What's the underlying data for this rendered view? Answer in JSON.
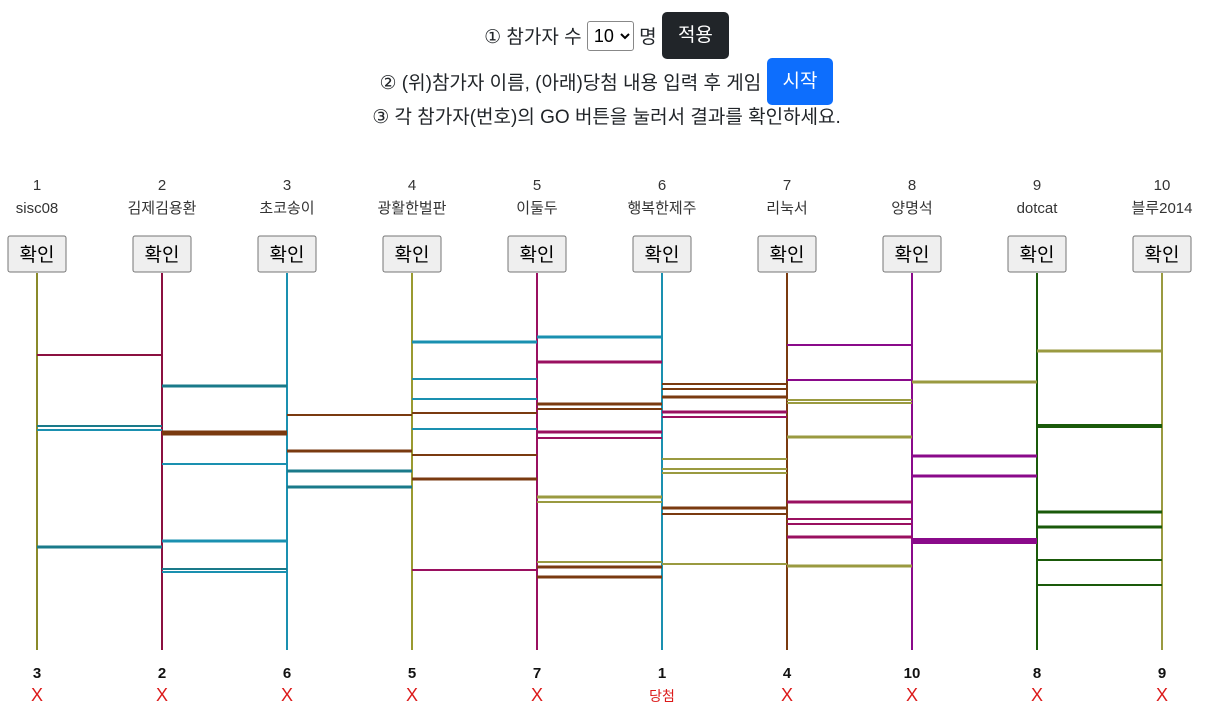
{
  "controls": {
    "line1_prefix": "① 참가자 수",
    "count_options": [
      "10"
    ],
    "count_selected": "10",
    "line1_suffix": "명",
    "apply_label": "적용",
    "line2_text": "② (위)참가자 이름, (아래)당첨 내용 입력 후 게임",
    "start_label": "시작",
    "line3_text": "③ 각 참가자(번호)의 GO 버튼을 눌러서 결과를 확인하세요."
  },
  "colors": {
    "lanes": [
      "#8a8a2a",
      "#8b1040",
      "#1a90b0",
      "#9a9a30",
      "#9a1060",
      "#1a90b0",
      "#7a3a10",
      "#8a0a8a",
      "#1a5a0a",
      "#9a9a40"
    ],
    "fail": "#dc1a1a",
    "win": "#dc1a1a",
    "button_bg": "#efefef"
  },
  "participants": [
    {
      "num": "1",
      "name": "sisc08",
      "button": "확인"
    },
    {
      "num": "2",
      "name": "김제김용환",
      "button": "확인"
    },
    {
      "num": "3",
      "name": "초코송이",
      "button": "확인"
    },
    {
      "num": "4",
      "name": "광활한벌판",
      "button": "확인"
    },
    {
      "num": "5",
      "name": "이둘두",
      "button": "확인"
    },
    {
      "num": "6",
      "name": "행복한제주",
      "button": "확인"
    },
    {
      "num": "7",
      "name": "리눅서",
      "button": "확인"
    },
    {
      "num": "8",
      "name": "양명석",
      "button": "확인"
    },
    {
      "num": "9",
      "name": "dotcat",
      "button": "확인"
    },
    {
      "num": "10",
      "name": "블루2014",
      "button": "확인"
    }
  ],
  "results": [
    {
      "num": "3",
      "text": "X"
    },
    {
      "num": "2",
      "text": "X"
    },
    {
      "num": "6",
      "text": "X"
    },
    {
      "num": "5",
      "text": "X"
    },
    {
      "num": "7",
      "text": "X"
    },
    {
      "num": "1",
      "text": "당첨"
    },
    {
      "num": "4",
      "text": "X"
    },
    {
      "num": "10",
      "text": "X"
    },
    {
      "num": "8",
      "text": "X"
    },
    {
      "num": "9",
      "text": "X"
    }
  ],
  "rungs": [
    {
      "gap": 0,
      "level": 355,
      "color": "#8b1040",
      "w": 2
    },
    {
      "gap": 0,
      "level": 426,
      "color": "#1a7a8a",
      "w": 2
    },
    {
      "gap": 0,
      "level": 430,
      "color": "#1a90b0",
      "w": 2
    },
    {
      "gap": 0,
      "level": 547,
      "color": "#1a7a8a",
      "w": 3
    },
    {
      "gap": 1,
      "level": 386,
      "color": "#1a7a8a",
      "w": 3
    },
    {
      "gap": 1,
      "level": 433,
      "color": "#7a3a10",
      "w": 5
    },
    {
      "gap": 1,
      "level": 464,
      "color": "#1a90b0",
      "w": 2
    },
    {
      "gap": 1,
      "level": 541,
      "color": "#1a90b0",
      "w": 3
    },
    {
      "gap": 1,
      "level": 569,
      "color": "#1a7a8a",
      "w": 2
    },
    {
      "gap": 1,
      "level": 572,
      "color": "#1a90b0",
      "w": 2
    },
    {
      "gap": 2,
      "level": 415,
      "color": "#7a3a10",
      "w": 2
    },
    {
      "gap": 2,
      "level": 451,
      "color": "#7a3a10",
      "w": 3
    },
    {
      "gap": 2,
      "level": 471,
      "color": "#1a7a8a",
      "w": 3
    },
    {
      "gap": 2,
      "level": 487,
      "color": "#1a7a8a",
      "w": 3
    },
    {
      "gap": 3,
      "level": 342,
      "color": "#1a90b0",
      "w": 3
    },
    {
      "gap": 3,
      "level": 379,
      "color": "#1a90b0",
      "w": 2
    },
    {
      "gap": 3,
      "level": 399,
      "color": "#1a90b0",
      "w": 2
    },
    {
      "gap": 3,
      "level": 413,
      "color": "#7a3a10",
      "w": 2
    },
    {
      "gap": 3,
      "level": 429,
      "color": "#1a90b0",
      "w": 2
    },
    {
      "gap": 3,
      "level": 455,
      "color": "#7a3a10",
      "w": 2
    },
    {
      "gap": 3,
      "level": 479,
      "color": "#7a3a10",
      "w": 3
    },
    {
      "gap": 3,
      "level": 570,
      "color": "#9a1060",
      "w": 2
    },
    {
      "gap": 4,
      "level": 337,
      "color": "#1a90b0",
      "w": 3
    },
    {
      "gap": 4,
      "level": 362,
      "color": "#9a1060",
      "w": 3
    },
    {
      "gap": 4,
      "level": 404,
      "color": "#7a3a10",
      "w": 3
    },
    {
      "gap": 4,
      "level": 409,
      "color": "#7a3a10",
      "w": 2
    },
    {
      "gap": 4,
      "level": 432,
      "color": "#9a1060",
      "w": 3
    },
    {
      "gap": 4,
      "level": 438,
      "color": "#9a1060",
      "w": 2
    },
    {
      "gap": 4,
      "level": 497,
      "color": "#9a9a40",
      "w": 3
    },
    {
      "gap": 4,
      "level": 502,
      "color": "#9a9a40",
      "w": 2
    },
    {
      "gap": 4,
      "level": 562,
      "color": "#9a9a40",
      "w": 2
    },
    {
      "gap": 4,
      "level": 567,
      "color": "#7a3a10",
      "w": 3
    },
    {
      "gap": 4,
      "level": 577,
      "color": "#7a3a10",
      "w": 3
    },
    {
      "gap": 5,
      "level": 384,
      "color": "#7a3a10",
      "w": 2
    },
    {
      "gap": 5,
      "level": 389,
      "color": "#7a3a10",
      "w": 2
    },
    {
      "gap": 5,
      "level": 397,
      "color": "#7a3a10",
      "w": 3
    },
    {
      "gap": 5,
      "level": 412,
      "color": "#9a1060",
      "w": 3
    },
    {
      "gap": 5,
      "level": 417,
      "color": "#9a1060",
      "w": 2
    },
    {
      "gap": 5,
      "level": 459,
      "color": "#9a9a40",
      "w": 2
    },
    {
      "gap": 5,
      "level": 469,
      "color": "#9a9a40",
      "w": 2
    },
    {
      "gap": 5,
      "level": 473,
      "color": "#9a9a40",
      "w": 2
    },
    {
      "gap": 5,
      "level": 508,
      "color": "#7a3a10",
      "w": 3
    },
    {
      "gap": 5,
      "level": 514,
      "color": "#7a3a10",
      "w": 2
    },
    {
      "gap": 5,
      "level": 564,
      "color": "#9a9a40",
      "w": 2
    },
    {
      "gap": 6,
      "level": 345,
      "color": "#8a0a8a",
      "w": 2
    },
    {
      "gap": 6,
      "level": 380,
      "color": "#8a0a8a",
      "w": 2
    },
    {
      "gap": 6,
      "level": 400,
      "color": "#9a9a40",
      "w": 2
    },
    {
      "gap": 6,
      "level": 403,
      "color": "#9a9a40",
      "w": 2
    },
    {
      "gap": 6,
      "level": 437,
      "color": "#9a9a40",
      "w": 3
    },
    {
      "gap": 6,
      "level": 502,
      "color": "#9a1060",
      "w": 3
    },
    {
      "gap": 6,
      "level": 519,
      "color": "#9a1060",
      "w": 2
    },
    {
      "gap": 6,
      "level": 524,
      "color": "#9a1060",
      "w": 2
    },
    {
      "gap": 6,
      "level": 537,
      "color": "#9a1060",
      "w": 3
    },
    {
      "gap": 6,
      "level": 566,
      "color": "#9a9a40",
      "w": 3
    },
    {
      "gap": 7,
      "level": 382,
      "color": "#9a9a40",
      "w": 3
    },
    {
      "gap": 7,
      "level": 456,
      "color": "#8a0a8a",
      "w": 3
    },
    {
      "gap": 7,
      "level": 476,
      "color": "#8a0a8a",
      "w": 3
    },
    {
      "gap": 7,
      "level": 540,
      "color": "#8a0a8a",
      "w": 4
    },
    {
      "gap": 7,
      "level": 543,
      "color": "#8a0a8a",
      "w": 2
    },
    {
      "gap": 8,
      "level": 351,
      "color": "#9a9a40",
      "w": 3
    },
    {
      "gap": 8,
      "level": 426,
      "color": "#1a5a0a",
      "w": 4
    },
    {
      "gap": 8,
      "level": 512,
      "color": "#1a5a0a",
      "w": 3
    },
    {
      "gap": 8,
      "level": 527,
      "color": "#1a5a0a",
      "w": 3
    },
    {
      "gap": 8,
      "level": 560,
      "color": "#1a5a0a",
      "w": 2
    },
    {
      "gap": 8,
      "level": 585,
      "color": "#1a5a0a",
      "w": 2
    }
  ]
}
